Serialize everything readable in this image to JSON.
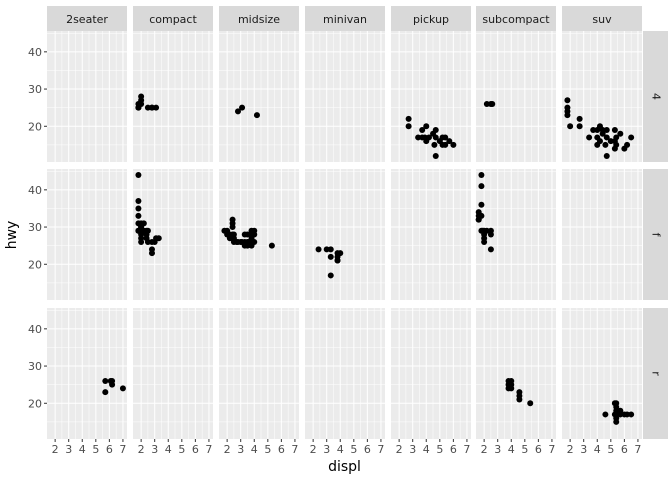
{
  "chart_data": {
    "type": "scatter",
    "facet_layout": "grid",
    "xlabel": "displ",
    "ylabel": "hwy",
    "col_labels": [
      "2seater",
      "compact",
      "midsize",
      "minivan",
      "pickup",
      "subcompact",
      "suv"
    ],
    "row_labels": [
      "4",
      "f",
      "r"
    ],
    "xlim": [
      1.4,
      7.3
    ],
    "ylim": [
      10.4,
      45.6
    ],
    "x_ticks": [
      2,
      3,
      4,
      5,
      6,
      7
    ],
    "y_ticks": [
      20,
      30,
      40
    ],
    "grid": true,
    "point_color": "#000000",
    "panel_background": "#ebebeb",
    "strip_background": "#d9d9d9",
    "panels": [
      {
        "row": "4",
        "col": "compact",
        "points": [
          [
            1.8,
            26
          ],
          [
            1.8,
            25
          ],
          [
            2.0,
            28
          ],
          [
            2.0,
            27
          ],
          [
            2.8,
            25
          ],
          [
            2.8,
            25
          ],
          [
            3.1,
            25
          ],
          [
            2.0,
            26
          ],
          [
            2.5,
            25
          ],
          [
            1.8,
            25
          ]
        ]
      },
      {
        "row": "4",
        "col": "midsize",
        "points": [
          [
            2.8,
            24
          ],
          [
            3.1,
            25
          ],
          [
            4.2,
            23
          ]
        ]
      },
      {
        "row": "4",
        "col": "pickup",
        "points": [
          [
            2.7,
            20
          ],
          [
            2.7,
            22
          ],
          [
            3.4,
            17
          ],
          [
            3.7,
            17
          ],
          [
            3.7,
            19
          ],
          [
            3.9,
            17
          ],
          [
            4.0,
            16
          ],
          [
            4.0,
            20
          ],
          [
            4.2,
            17
          ],
          [
            4.6,
            15
          ],
          [
            4.7,
            17
          ],
          [
            4.7,
            12
          ],
          [
            4.7,
            19
          ],
          [
            5.2,
            17
          ],
          [
            5.2,
            15
          ],
          [
            5.4,
            17
          ],
          [
            5.4,
            15
          ],
          [
            5.7,
            16
          ],
          [
            6.0,
            15
          ],
          [
            4.5,
            18
          ],
          [
            5.0,
            16
          ]
        ]
      },
      {
        "row": "4",
        "col": "subcompact",
        "points": [
          [
            2.2,
            26
          ],
          [
            2.5,
            26
          ],
          [
            2.6,
            26
          ]
        ]
      },
      {
        "row": "4",
        "col": "suv",
        "points": [
          [
            1.8,
            27
          ],
          [
            1.8,
            25
          ],
          [
            1.8,
            24
          ],
          [
            1.8,
            23
          ],
          [
            2.0,
            20
          ],
          [
            2.7,
            22
          ],
          [
            2.7,
            20
          ],
          [
            3.4,
            17
          ],
          [
            3.7,
            19
          ],
          [
            4.0,
            17
          ],
          [
            4.0,
            19
          ],
          [
            4.2,
            20
          ],
          [
            4.2,
            16
          ],
          [
            4.4,
            18
          ],
          [
            4.6,
            15
          ],
          [
            4.7,
            17
          ],
          [
            4.7,
            12
          ],
          [
            4.7,
            19
          ],
          [
            5.0,
            16
          ],
          [
            5.3,
            19
          ],
          [
            5.3,
            16
          ],
          [
            5.4,
            17
          ],
          [
            5.4,
            15
          ],
          [
            5.7,
            18
          ],
          [
            6.0,
            14
          ],
          [
            6.2,
            15
          ],
          [
            6.5,
            17
          ],
          [
            4.4,
            19
          ],
          [
            5.3,
            14
          ],
          [
            4.0,
            15
          ]
        ]
      },
      {
        "row": "f",
        "col": "compact",
        "points": [
          [
            1.8,
            29
          ],
          [
            1.8,
            31
          ],
          [
            1.8,
            33
          ],
          [
            1.8,
            35
          ],
          [
            1.8,
            37
          ],
          [
            1.8,
            44
          ],
          [
            1.8,
            29
          ],
          [
            2.0,
            30
          ],
          [
            2.0,
            29
          ],
          [
            2.0,
            26
          ],
          [
            2.0,
            27
          ],
          [
            2.2,
            31
          ],
          [
            2.4,
            27
          ],
          [
            2.4,
            29
          ],
          [
            2.5,
            26
          ],
          [
            2.8,
            24
          ],
          [
            2.8,
            23
          ],
          [
            3.0,
            26
          ],
          [
            3.3,
            27
          ],
          [
            1.9,
            29
          ],
          [
            2.0,
            28
          ],
          [
            2.0,
            30
          ],
          [
            2.2,
            29
          ],
          [
            2.4,
            28
          ],
          [
            2.5,
            29
          ],
          [
            2.0,
            31
          ],
          [
            2.8,
            26
          ],
          [
            3.1,
            27
          ]
        ]
      },
      {
        "row": "f",
        "col": "midsize",
        "points": [
          [
            1.8,
            29
          ],
          [
            2.0,
            29
          ],
          [
            2.0,
            28
          ],
          [
            2.2,
            27
          ],
          [
            2.4,
            27
          ],
          [
            2.4,
            28
          ],
          [
            2.4,
            30
          ],
          [
            2.4,
            31
          ],
          [
            2.5,
            26
          ],
          [
            2.5,
            27
          ],
          [
            2.7,
            26
          ],
          [
            2.8,
            26
          ],
          [
            3.0,
            26
          ],
          [
            3.3,
            26
          ],
          [
            3.3,
            25
          ],
          [
            3.5,
            26
          ],
          [
            3.5,
            28
          ],
          [
            3.6,
            26
          ],
          [
            3.8,
            26
          ],
          [
            3.8,
            27
          ],
          [
            3.8,
            28
          ],
          [
            3.8,
            29
          ],
          [
            4.0,
            26
          ],
          [
            4.0,
            28
          ],
          [
            4.0,
            29
          ],
          [
            5.3,
            25
          ],
          [
            2.5,
            28
          ],
          [
            2.4,
            32
          ],
          [
            3.1,
            26
          ],
          [
            3.3,
            28
          ],
          [
            3.5,
            25
          ],
          [
            3.8,
            25
          ],
          [
            2.2,
            28
          ]
        ]
      },
      {
        "row": "f",
        "col": "minivan",
        "points": [
          [
            2.4,
            24
          ],
          [
            3.0,
            24
          ],
          [
            3.3,
            24
          ],
          [
            3.3,
            22
          ],
          [
            3.3,
            17
          ],
          [
            3.8,
            22
          ],
          [
            3.8,
            21
          ],
          [
            3.8,
            23
          ],
          [
            4.0,
            23
          ],
          [
            3.8,
            21
          ]
        ]
      },
      {
        "row": "f",
        "col": "subcompact",
        "points": [
          [
            1.6,
            32
          ],
          [
            1.6,
            33
          ],
          [
            1.6,
            34
          ],
          [
            1.6,
            32
          ],
          [
            1.8,
            36
          ],
          [
            1.8,
            44
          ],
          [
            1.8,
            41
          ],
          [
            1.8,
            29
          ],
          [
            1.9,
            29
          ],
          [
            2.0,
            29
          ],
          [
            2.0,
            28
          ],
          [
            2.0,
            26
          ],
          [
            2.0,
            27
          ],
          [
            2.2,
            29
          ],
          [
            2.5,
            29
          ],
          [
            2.5,
            24
          ],
          [
            2.5,
            28
          ],
          [
            1.8,
            33
          ]
        ]
      },
      {
        "row": "r",
        "col": "2seater",
        "points": [
          [
            5.7,
            26
          ],
          [
            5.7,
            23
          ],
          [
            6.1,
            26
          ],
          [
            6.2,
            25
          ],
          [
            6.2,
            26
          ],
          [
            7.0,
            24
          ]
        ]
      },
      {
        "row": "r",
        "col": "subcompact",
        "points": [
          [
            3.8,
            26
          ],
          [
            3.8,
            24
          ],
          [
            4.0,
            26
          ],
          [
            4.0,
            25
          ],
          [
            4.6,
            22
          ],
          [
            4.6,
            21
          ],
          [
            5.4,
            20
          ],
          [
            3.8,
            25
          ],
          [
            4.0,
            24
          ],
          [
            4.6,
            23
          ]
        ]
      },
      {
        "row": "r",
        "col": "suv",
        "points": [
          [
            4.6,
            17
          ],
          [
            5.4,
            17
          ],
          [
            5.4,
            15
          ],
          [
            5.4,
            16
          ],
          [
            5.4,
            18
          ],
          [
            5.4,
            20
          ],
          [
            5.7,
            17
          ],
          [
            5.7,
            18
          ],
          [
            6.0,
            17
          ],
          [
            6.2,
            17
          ],
          [
            6.5,
            17
          ],
          [
            5.3,
            17
          ],
          [
            5.3,
            20
          ],
          [
            5.4,
            19
          ]
        ]
      }
    ]
  }
}
